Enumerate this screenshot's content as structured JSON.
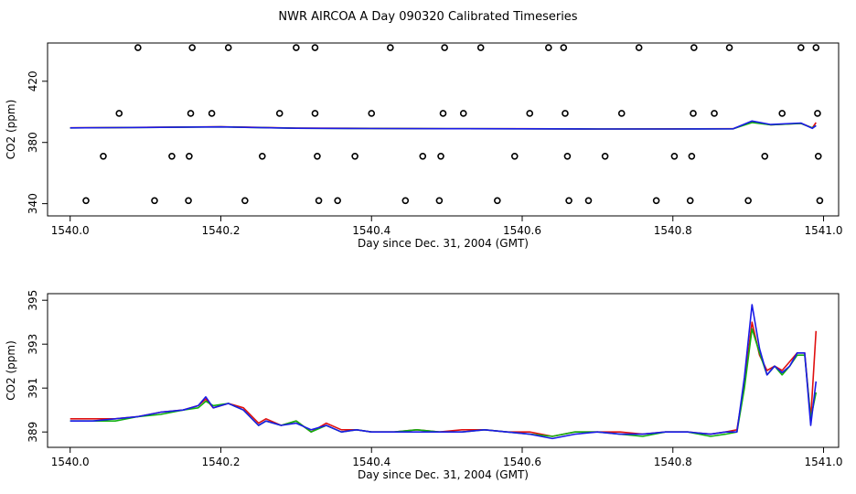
{
  "title": "NWR AIRCOA A  Day 090320  Calibrated Timeseries",
  "colors": {
    "red": "#e01010",
    "green": "#10b010",
    "blue": "#1a1ae8",
    "black": "#000000"
  },
  "chart_data": [
    {
      "type": "scatter",
      "xlabel": "Day since Dec. 31, 2004 (GMT)",
      "ylabel": "CO2 (ppm)",
      "xlim": [
        1539.97,
        1541.02
      ],
      "ylim": [
        332,
        445
      ],
      "x_ticks": [
        1540.0,
        1540.2,
        1540.4,
        1540.6,
        1540.8,
        1541.0
      ],
      "x_tick_labels": [
        "1540.0",
        "1540.2",
        "1540.4",
        "1540.6",
        "1540.8",
        "1541.0"
      ],
      "y_ticks": [
        340,
        380,
        420
      ],
      "y_tick_labels": [
        "340",
        "380",
        "420"
      ],
      "points": [
        {
          "x": 1540.09,
          "y": 442
        },
        {
          "x": 1540.162,
          "y": 442
        },
        {
          "x": 1540.21,
          "y": 442
        },
        {
          "x": 1540.3,
          "y": 442
        },
        {
          "x": 1540.325,
          "y": 442
        },
        {
          "x": 1540.425,
          "y": 442
        },
        {
          "x": 1540.497,
          "y": 442
        },
        {
          "x": 1540.545,
          "y": 442
        },
        {
          "x": 1540.635,
          "y": 442
        },
        {
          "x": 1540.655,
          "y": 442
        },
        {
          "x": 1540.755,
          "y": 442
        },
        {
          "x": 1540.828,
          "y": 442
        },
        {
          "x": 1540.875,
          "y": 442
        },
        {
          "x": 1540.97,
          "y": 442
        },
        {
          "x": 1540.99,
          "y": 442
        },
        {
          "x": 1540.065,
          "y": 399
        },
        {
          "x": 1540.16,
          "y": 399
        },
        {
          "x": 1540.188,
          "y": 399
        },
        {
          "x": 1540.278,
          "y": 399
        },
        {
          "x": 1540.325,
          "y": 399
        },
        {
          "x": 1540.4,
          "y": 399
        },
        {
          "x": 1540.495,
          "y": 399
        },
        {
          "x": 1540.522,
          "y": 399
        },
        {
          "x": 1540.61,
          "y": 399
        },
        {
          "x": 1540.657,
          "y": 399
        },
        {
          "x": 1540.732,
          "y": 399
        },
        {
          "x": 1540.827,
          "y": 399
        },
        {
          "x": 1540.855,
          "y": 399
        },
        {
          "x": 1540.945,
          "y": 399
        },
        {
          "x": 1540.992,
          "y": 399
        },
        {
          "x": 1540.044,
          "y": 371
        },
        {
          "x": 1540.135,
          "y": 371
        },
        {
          "x": 1540.158,
          "y": 371
        },
        {
          "x": 1540.255,
          "y": 371
        },
        {
          "x": 1540.328,
          "y": 371
        },
        {
          "x": 1540.378,
          "y": 371
        },
        {
          "x": 1540.468,
          "y": 371
        },
        {
          "x": 1540.492,
          "y": 371
        },
        {
          "x": 1540.59,
          "y": 371
        },
        {
          "x": 1540.66,
          "y": 371
        },
        {
          "x": 1540.71,
          "y": 371
        },
        {
          "x": 1540.802,
          "y": 371
        },
        {
          "x": 1540.825,
          "y": 371
        },
        {
          "x": 1540.922,
          "y": 371
        },
        {
          "x": 1540.993,
          "y": 371
        },
        {
          "x": 1540.021,
          "y": 342
        },
        {
          "x": 1540.112,
          "y": 342
        },
        {
          "x": 1540.157,
          "y": 342
        },
        {
          "x": 1540.232,
          "y": 342
        },
        {
          "x": 1540.33,
          "y": 342
        },
        {
          "x": 1540.355,
          "y": 342
        },
        {
          "x": 1540.445,
          "y": 342
        },
        {
          "x": 1540.49,
          "y": 342
        },
        {
          "x": 1540.567,
          "y": 342
        },
        {
          "x": 1540.662,
          "y": 342
        },
        {
          "x": 1540.688,
          "y": 342
        },
        {
          "x": 1540.778,
          "y": 342
        },
        {
          "x": 1540.823,
          "y": 342
        },
        {
          "x": 1540.9,
          "y": 342
        },
        {
          "x": 1540.995,
          "y": 342
        }
      ],
      "series": [
        {
          "color": "red",
          "x": [
            1540.0,
            1540.1,
            1540.2,
            1540.3,
            1540.4,
            1540.5,
            1540.6,
            1540.7,
            1540.8,
            1540.88,
            1540.905,
            1540.93,
            1540.97,
            1540.985,
            1540.99
          ],
          "y": [
            389.6,
            389.9,
            390.3,
            389.4,
            389.2,
            389.0,
            389.0,
            388.8,
            388.9,
            389.0,
            393.5,
            391.5,
            392.5,
            389.5,
            393
          ]
        },
        {
          "color": "green",
          "x": [
            1540.0,
            1540.1,
            1540.2,
            1540.3,
            1540.4,
            1540.5,
            1540.6,
            1540.7,
            1540.8,
            1540.88,
            1540.905,
            1540.93,
            1540.97,
            1540.985,
            1540.99
          ],
          "y": [
            389.5,
            389.8,
            390.2,
            389.3,
            389.1,
            389.0,
            388.9,
            388.8,
            388.8,
            388.9,
            393.0,
            391.5,
            392.4,
            389.6,
            391
          ]
        },
        {
          "color": "blue",
          "x": [
            1540.0,
            1540.1,
            1540.2,
            1540.3,
            1540.4,
            1540.5,
            1540.6,
            1540.7,
            1540.8,
            1540.88,
            1540.905,
            1540.93,
            1540.97,
            1540.985,
            1540.99
          ],
          "y": [
            389.5,
            389.8,
            390.2,
            389.3,
            389.1,
            389.0,
            388.9,
            388.8,
            388.8,
            388.9,
            394.0,
            391.7,
            392.7,
            389.2,
            391
          ]
        }
      ]
    },
    {
      "type": "line",
      "xlabel": "Day since Dec. 31, 2004 (GMT)",
      "ylabel": "CO2 (ppm)",
      "xlim": [
        1539.97,
        1541.02
      ],
      "ylim": [
        388.3,
        395.3
      ],
      "x_ticks": [
        1540.0,
        1540.2,
        1540.4,
        1540.6,
        1540.8,
        1541.0
      ],
      "x_tick_labels": [
        "1540.0",
        "1540.2",
        "1540.4",
        "1540.6",
        "1540.8",
        "1541.0"
      ],
      "y_ticks": [
        389,
        391,
        393,
        395
      ],
      "y_tick_labels": [
        "389",
        "391",
        "393",
        "395"
      ],
      "series": [
        {
          "color": "red",
          "x": [
            1540.0,
            1540.03,
            1540.06,
            1540.09,
            1540.12,
            1540.15,
            1540.17,
            1540.18,
            1540.19,
            1540.21,
            1540.23,
            1540.25,
            1540.26,
            1540.28,
            1540.3,
            1540.32,
            1540.34,
            1540.36,
            1540.38,
            1540.4,
            1540.43,
            1540.46,
            1540.49,
            1540.52,
            1540.55,
            1540.58,
            1540.61,
            1540.64,
            1540.67,
            1540.7,
            1540.73,
            1540.76,
            1540.79,
            1540.82,
            1540.85,
            1540.87,
            1540.885,
            1540.895,
            1540.905,
            1540.915,
            1540.925,
            1540.935,
            1540.945,
            1540.955,
            1540.965,
            1540.975,
            1540.983,
            1540.99
          ],
          "y": [
            389.6,
            389.6,
            389.6,
            389.7,
            389.9,
            390.0,
            390.2,
            390.5,
            390.1,
            390.3,
            390.1,
            389.4,
            389.6,
            389.3,
            389.5,
            389.0,
            389.4,
            389.1,
            389.1,
            389.0,
            389.0,
            389.1,
            389.0,
            389.1,
            389.1,
            389.0,
            389.0,
            388.8,
            389.0,
            389.0,
            389.0,
            388.9,
            389.0,
            389.0,
            388.9,
            389.0,
            389.1,
            391.2,
            394.0,
            392.5,
            391.8,
            392.0,
            391.8,
            392.2,
            392.6,
            392.6,
            389.6,
            393.6
          ]
        },
        {
          "color": "green",
          "x": [
            1540.0,
            1540.03,
            1540.06,
            1540.09,
            1540.12,
            1540.15,
            1540.17,
            1540.18,
            1540.19,
            1540.21,
            1540.23,
            1540.25,
            1540.26,
            1540.28,
            1540.3,
            1540.32,
            1540.34,
            1540.36,
            1540.38,
            1540.4,
            1540.43,
            1540.46,
            1540.49,
            1540.52,
            1540.55,
            1540.58,
            1540.61,
            1540.64,
            1540.67,
            1540.7,
            1540.73,
            1540.76,
            1540.79,
            1540.82,
            1540.85,
            1540.87,
            1540.885,
            1540.895,
            1540.905,
            1540.915,
            1540.925,
            1540.935,
            1540.945,
            1540.955,
            1540.965,
            1540.975,
            1540.983,
            1540.99
          ],
          "y": [
            389.5,
            389.5,
            389.5,
            389.7,
            389.8,
            390.0,
            390.1,
            390.4,
            390.2,
            390.3,
            390.0,
            389.3,
            389.5,
            389.3,
            389.5,
            389.0,
            389.3,
            389.0,
            389.1,
            389.0,
            389.0,
            389.1,
            389.0,
            389.0,
            389.1,
            389.0,
            388.9,
            388.8,
            389.0,
            389.0,
            388.9,
            388.8,
            389.0,
            389.0,
            388.8,
            388.9,
            389.0,
            391.0,
            393.7,
            392.6,
            391.6,
            392.0,
            391.6,
            392.0,
            392.5,
            392.5,
            389.6,
            390.8
          ]
        },
        {
          "color": "blue",
          "x": [
            1540.0,
            1540.03,
            1540.06,
            1540.09,
            1540.12,
            1540.15,
            1540.17,
            1540.18,
            1540.19,
            1540.21,
            1540.23,
            1540.25,
            1540.26,
            1540.28,
            1540.3,
            1540.32,
            1540.34,
            1540.36,
            1540.38,
            1540.4,
            1540.43,
            1540.46,
            1540.49,
            1540.52,
            1540.55,
            1540.58,
            1540.61,
            1540.64,
            1540.67,
            1540.7,
            1540.73,
            1540.76,
            1540.79,
            1540.82,
            1540.85,
            1540.87,
            1540.885,
            1540.895,
            1540.905,
            1540.915,
            1540.925,
            1540.935,
            1540.945,
            1540.955,
            1540.965,
            1540.975,
            1540.983,
            1540.99
          ],
          "y": [
            389.5,
            389.5,
            389.6,
            389.7,
            389.9,
            390.0,
            390.2,
            390.6,
            390.1,
            390.3,
            390.0,
            389.3,
            389.5,
            389.3,
            389.4,
            389.1,
            389.3,
            389.0,
            389.1,
            389.0,
            389.0,
            389.0,
            389.0,
            389.0,
            389.1,
            389.0,
            388.9,
            388.7,
            388.9,
            389.0,
            388.9,
            388.9,
            389.0,
            389.0,
            388.9,
            389.0,
            389.0,
            391.5,
            394.8,
            392.8,
            391.6,
            392.0,
            391.7,
            392.0,
            392.6,
            392.6,
            389.3,
            391.3
          ]
        }
      ]
    }
  ]
}
